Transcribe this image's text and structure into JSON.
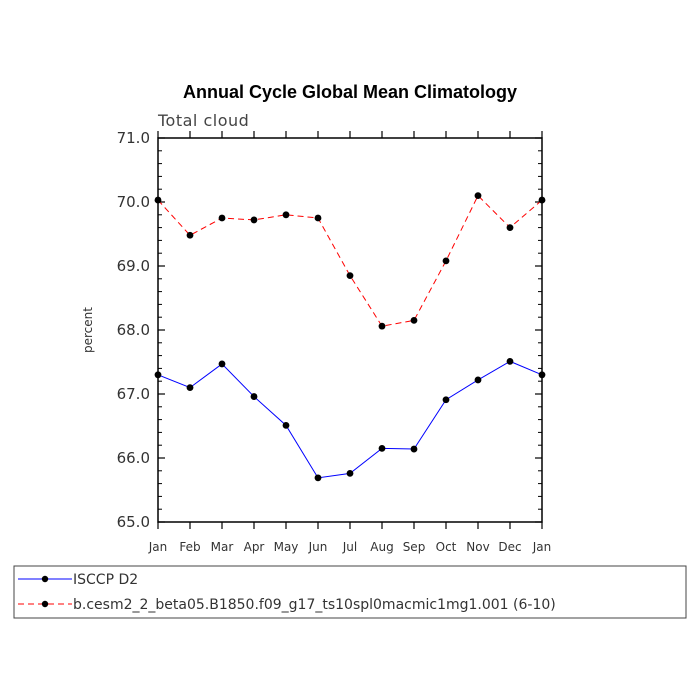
{
  "chart_data": {
    "type": "line",
    "title": "Annual Cycle Global Mean Climatology",
    "subtitle": "Total cloud",
    "xlabel": "",
    "ylabel": "percent",
    "ylim": [
      65.0,
      71.0
    ],
    "yticks": [
      "65.0",
      "66.0",
      "67.0",
      "68.0",
      "69.0",
      "70.0",
      "71.0"
    ],
    "categories": [
      "Jan",
      "Feb",
      "Mar",
      "Apr",
      "May",
      "Jun",
      "Jul",
      "Aug",
      "Sep",
      "Oct",
      "Nov",
      "Dec",
      "Jan"
    ],
    "series": [
      {
        "name": "ISCCP D2",
        "color": "#0000ff",
        "dash": "solid",
        "marker": "filled-circle",
        "values": [
          67.3,
          67.1,
          67.47,
          66.96,
          66.51,
          65.69,
          65.76,
          66.15,
          66.14,
          66.91,
          67.22,
          67.51,
          67.3
        ]
      },
      {
        "name": "b.cesm2_2_beta05.B1850.f09_g17_ts10spl0macmic1mg1.001 (6-10)",
        "color": "#ff0000",
        "dash": "dashed",
        "marker": "filled-circle",
        "values": [
          70.03,
          69.48,
          69.75,
          69.72,
          69.8,
          69.75,
          68.85,
          68.06,
          68.15,
          69.08,
          70.1,
          69.6,
          70.03
        ]
      }
    ],
    "legend_position": "bottom"
  }
}
